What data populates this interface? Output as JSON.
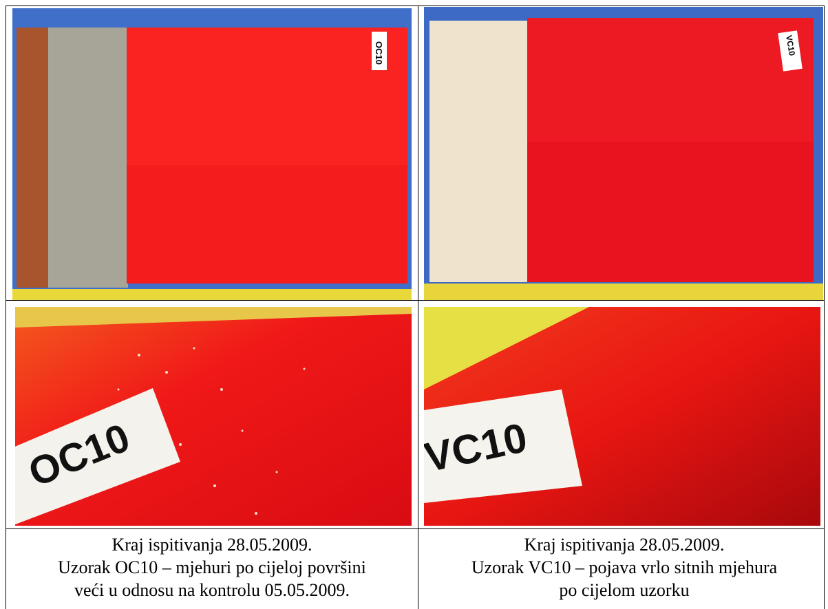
{
  "table": {
    "rows": [
      [
        {
          "photo_label": "OC10"
        },
        {
          "photo_label": "VC10"
        }
      ],
      [
        {
          "photo_label": "OC10"
        },
        {
          "photo_label": "VC10"
        }
      ],
      [
        {
          "caption": [
            "Kraj ispitivanja 28.05.2009.",
            "Uzorak OC10 – mjehuri po cijeloj površini",
            "veći u odnosu na kontrolu 05.05.2009."
          ]
        },
        {
          "caption": [
            "Kraj ispitivanja 28.05.2009.",
            "Uzorak VC10 – pojava vrlo sitnih mjehura",
            "po cijelom uzorku"
          ]
        }
      ]
    ]
  }
}
